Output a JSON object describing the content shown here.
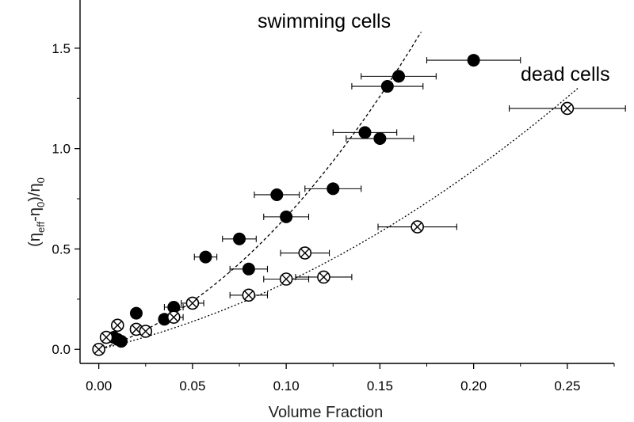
{
  "chart_data": {
    "type": "scatter",
    "title": "",
    "xlabel": "Volume Fraction",
    "ylabel": "(η_eff-η_0)/η_0",
    "ylabel_parts": {
      "open": "(η",
      "sub1": "eff",
      "mid": "-η",
      "sub2": "0",
      "close": ")/η",
      "sub3": "0"
    },
    "xlim": [
      -0.01,
      0.275
    ],
    "ylim": [
      -0.07,
      1.74
    ],
    "x_ticks": [
      0.0,
      0.05,
      0.1,
      0.15,
      0.2,
      0.25
    ],
    "x_tick_labels": [
      "0.00",
      "0.05",
      "0.10",
      "0.15",
      "0.20",
      "0.25"
    ],
    "y_ticks": [
      0.0,
      0.5,
      1.0,
      1.5
    ],
    "y_tick_labels": [
      "0.0",
      "0.5",
      "1.0",
      "1.5"
    ],
    "grid": false,
    "series": [
      {
        "name": "swimming cells",
        "marker": "filled-circle",
        "points": [
          {
            "x": 0.008,
            "y": 0.06
          },
          {
            "x": 0.01,
            "y": 0.05
          },
          {
            "x": 0.012,
            "y": 0.04
          },
          {
            "x": 0.02,
            "y": 0.18
          },
          {
            "x": 0.035,
            "y": 0.15
          },
          {
            "x": 0.04,
            "y": 0.21,
            "xerr": 0.005
          },
          {
            "x": 0.057,
            "y": 0.46,
            "xerr": 0.006
          },
          {
            "x": 0.075,
            "y": 0.55,
            "xerr": 0.009
          },
          {
            "x": 0.08,
            "y": 0.4,
            "xerr": 0.01
          },
          {
            "x": 0.095,
            "y": 0.77,
            "xerr": 0.012
          },
          {
            "x": 0.1,
            "y": 0.66,
            "xerr": 0.012
          },
          {
            "x": 0.125,
            "y": 0.8,
            "xerr": 0.015
          },
          {
            "x": 0.142,
            "y": 1.08,
            "xerr": 0.017
          },
          {
            "x": 0.15,
            "y": 1.05,
            "xerr": 0.018
          },
          {
            "x": 0.154,
            "y": 1.31,
            "xerr": 0.019
          },
          {
            "x": 0.16,
            "y": 1.36,
            "xerr": 0.02
          },
          {
            "x": 0.2,
            "y": 1.44,
            "xerr": 0.025
          }
        ],
        "fit": {
          "a": 3.0,
          "b": 36.0,
          "x_max": 0.172
        }
      },
      {
        "name": "dead cells",
        "marker": "crossed-circle",
        "points": [
          {
            "x": 0.0,
            "y": 0.0
          },
          {
            "x": 0.004,
            "y": 0.06
          },
          {
            "x": 0.01,
            "y": 0.12
          },
          {
            "x": 0.02,
            "y": 0.1,
            "xerr": 0.003
          },
          {
            "x": 0.025,
            "y": 0.09,
            "xerr": 0.003
          },
          {
            "x": 0.04,
            "y": 0.16,
            "xerr": 0.005
          },
          {
            "x": 0.05,
            "y": 0.23,
            "xerr": 0.006
          },
          {
            "x": 0.08,
            "y": 0.27,
            "xerr": 0.01
          },
          {
            "x": 0.1,
            "y": 0.35,
            "xerr": 0.012
          },
          {
            "x": 0.11,
            "y": 0.48,
            "xerr": 0.013
          },
          {
            "x": 0.12,
            "y": 0.36,
            "xerr": 0.015
          },
          {
            "x": 0.17,
            "y": 0.61,
            "xerr": 0.021
          },
          {
            "x": 0.25,
            "y": 1.2,
            "xerr": 0.031
          }
        ],
        "fit": {
          "a": 2.2,
          "b": 11.3,
          "x_max": 0.256
        }
      }
    ],
    "annotations": [
      {
        "text": "swimming cells",
        "near_series": 0
      },
      {
        "text": "dead cells",
        "near_series": 1
      }
    ]
  }
}
